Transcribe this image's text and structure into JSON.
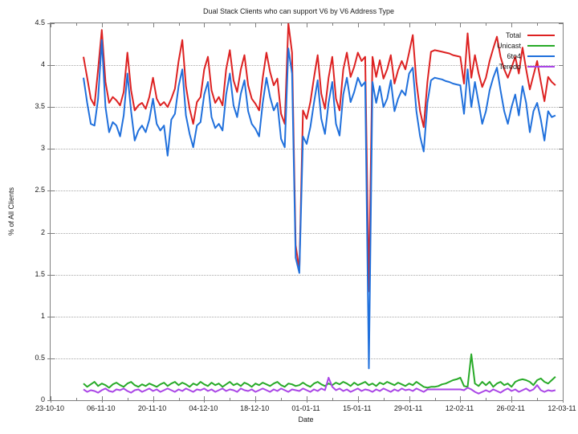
{
  "title": "Dual Stack Clients who can support V6 by V6 Address Type",
  "axes": {
    "x_label": "Date",
    "y_label": "% of All Clients",
    "x_tick_labels": [
      "23-10-10",
      "06-11-10",
      "20-11-10",
      "04-12-10",
      "18-12-10",
      "01-01-11",
      "15-01-11",
      "29-01-11",
      "12-02-11",
      "26-02-11",
      "12-03-11"
    ],
    "y_tick_labels": [
      "0",
      "0.5",
      "1",
      "1.5",
      "2",
      "2.5",
      "3",
      "3.5",
      "4",
      "4.5"
    ]
  },
  "colors": {
    "total": "#dd2222",
    "unicast": "#28aa28",
    "six_to_four": "#2070dc",
    "teredo": "#aa46e6",
    "border": "#7f7f7f",
    "grid": "#a8a8a8",
    "text": "#1a1a1a"
  },
  "chart_data": {
    "type": "line",
    "title": "Dual Stack Clients who can support V6 by V6 Address Type",
    "xlabel": "Date",
    "ylabel": "% of All Clients",
    "ylim": [
      0,
      4.5
    ],
    "x_axis_days_range": [
      0,
      140
    ],
    "x_tick_labels": [
      "23-10-10",
      "06-11-10",
      "20-11-10",
      "04-12-10",
      "18-12-10",
      "01-01-11",
      "15-01-11",
      "29-01-11",
      "12-02-11",
      "26-02-11",
      "12-03-11"
    ],
    "x_major_tick_days": 14,
    "x_minor_tick_days": 7,
    "y_grid_values": [
      0.5,
      1,
      1.5,
      2,
      2.5,
      3,
      3.5,
      4
    ],
    "y_tick_values": [
      0,
      0.5,
      1,
      1.5,
      2,
      2.5,
      3,
      3.5,
      4,
      4.5
    ],
    "grid": "horizontal dotted",
    "legend_position": "top-right-inside",
    "series_start_date": "01-11-10",
    "series_start_day_offset": 9,
    "series_day_interval": 1,
    "series": [
      {
        "name": "Total",
        "color": "#dd2222",
        "values": [
          4.1,
          3.85,
          3.6,
          3.52,
          3.95,
          4.42,
          3.8,
          3.55,
          3.62,
          3.58,
          3.52,
          3.68,
          4.15,
          3.7,
          3.46,
          3.52,
          3.55,
          3.48,
          3.62,
          3.85,
          3.6,
          3.52,
          3.56,
          3.5,
          3.6,
          3.72,
          4.05,
          4.3,
          3.75,
          3.48,
          3.3,
          3.56,
          3.62,
          3.95,
          4.1,
          3.7,
          3.55,
          3.62,
          3.52,
          3.95,
          4.18,
          3.82,
          3.68,
          3.95,
          4.12,
          3.76,
          3.6,
          3.54,
          3.46,
          3.85,
          4.15,
          3.92,
          3.76,
          3.84,
          3.42,
          3.3,
          4.5,
          4.15,
          1.85,
          1.55,
          3.46,
          3.36,
          3.56,
          3.85,
          4.12,
          3.66,
          3.48,
          3.85,
          4.1,
          3.6,
          3.46,
          3.95,
          4.15,
          3.86,
          3.98,
          4.15,
          4.05,
          4.1,
          1.3,
          4.1,
          3.86,
          4.06,
          3.84,
          3.95,
          4.12,
          3.78,
          3.94,
          4.05,
          3.95,
          4.15,
          4.36,
          3.8,
          3.45,
          3.26,
          3.8,
          4.16,
          4.18,
          4.17,
          4.16,
          4.15,
          4.14,
          4.12,
          4.11,
          4.1,
          3.78,
          4.38,
          3.85,
          4.12,
          3.9,
          3.74,
          3.85,
          4.05,
          4.2,
          4.34,
          4.1,
          3.95,
          3.85,
          3.97,
          4.1,
          3.9,
          4.21,
          3.95,
          3.71,
          3.88,
          4.05,
          3.8,
          3.57,
          3.86,
          3.8,
          3.76
        ]
      },
      {
        "name": "Unicast",
        "color": "#28aa28",
        "values": [
          0.2,
          0.16,
          0.19,
          0.22,
          0.17,
          0.2,
          0.18,
          0.15,
          0.19,
          0.21,
          0.18,
          0.16,
          0.2,
          0.22,
          0.18,
          0.16,
          0.19,
          0.17,
          0.2,
          0.18,
          0.16,
          0.19,
          0.21,
          0.17,
          0.2,
          0.22,
          0.18,
          0.21,
          0.19,
          0.16,
          0.2,
          0.18,
          0.22,
          0.19,
          0.17,
          0.21,
          0.18,
          0.2,
          0.16,
          0.19,
          0.22,
          0.18,
          0.2,
          0.17,
          0.21,
          0.19,
          0.16,
          0.2,
          0.18,
          0.21,
          0.19,
          0.17,
          0.2,
          0.22,
          0.18,
          0.16,
          0.2,
          0.19,
          0.17,
          0.18,
          0.21,
          0.18,
          0.16,
          0.2,
          0.22,
          0.19,
          0.17,
          0.2,
          0.18,
          0.21,
          0.19,
          0.22,
          0.2,
          0.17,
          0.21,
          0.18,
          0.2,
          0.22,
          0.18,
          0.2,
          0.17,
          0.21,
          0.19,
          0.22,
          0.2,
          0.18,
          0.21,
          0.19,
          0.17,
          0.2,
          0.18,
          0.22,
          0.19,
          0.16,
          0.15,
          0.16,
          0.16,
          0.17,
          0.19,
          0.2,
          0.22,
          0.24,
          0.25,
          0.27,
          0.17,
          0.16,
          0.55,
          0.2,
          0.17,
          0.22,
          0.18,
          0.22,
          0.16,
          0.2,
          0.22,
          0.18,
          0.2,
          0.16,
          0.22,
          0.24,
          0.25,
          0.24,
          0.22,
          0.18,
          0.24,
          0.26,
          0.22,
          0.2,
          0.24,
          0.28
        ]
      },
      {
        "name": "6to4",
        "color": "#2070dc",
        "values": [
          3.85,
          3.55,
          3.3,
          3.28,
          3.6,
          4.3,
          3.5,
          3.2,
          3.32,
          3.28,
          3.15,
          3.4,
          3.9,
          3.45,
          3.1,
          3.22,
          3.28,
          3.2,
          3.35,
          3.6,
          3.3,
          3.22,
          3.28,
          2.92,
          3.35,
          3.42,
          3.75,
          3.95,
          3.4,
          3.18,
          3.02,
          3.28,
          3.32,
          3.65,
          3.8,
          3.38,
          3.25,
          3.3,
          3.22,
          3.65,
          3.9,
          3.52,
          3.38,
          3.66,
          3.82,
          3.45,
          3.3,
          3.24,
          3.15,
          3.55,
          3.85,
          3.62,
          3.46,
          3.55,
          3.12,
          3.02,
          4.2,
          3.9,
          1.7,
          1.52,
          3.15,
          3.06,
          3.26,
          3.55,
          3.82,
          3.36,
          3.18,
          3.55,
          3.8,
          3.3,
          3.16,
          3.65,
          3.85,
          3.56,
          3.68,
          3.85,
          3.75,
          3.8,
          0.38,
          3.8,
          3.55,
          3.75,
          3.5,
          3.6,
          3.82,
          3.45,
          3.6,
          3.7,
          3.64,
          3.9,
          3.97,
          3.45,
          3.15,
          2.97,
          3.55,
          3.82,
          3.85,
          3.84,
          3.83,
          3.81,
          3.8,
          3.78,
          3.77,
          3.76,
          3.42,
          3.95,
          3.5,
          3.8,
          3.55,
          3.3,
          3.45,
          3.7,
          3.85,
          3.97,
          3.7,
          3.45,
          3.3,
          3.5,
          3.65,
          3.4,
          3.75,
          3.55,
          3.2,
          3.45,
          3.55,
          3.35,
          3.1,
          3.45,
          3.38,
          3.4
        ]
      },
      {
        "name": "Teredo",
        "color": "#aa46e6",
        "values": [
          0.13,
          0.1,
          0.12,
          0.11,
          0.09,
          0.12,
          0.14,
          0.11,
          0.1,
          0.13,
          0.12,
          0.14,
          0.11,
          0.09,
          0.12,
          0.13,
          0.1,
          0.12,
          0.14,
          0.11,
          0.13,
          0.1,
          0.12,
          0.14,
          0.12,
          0.1,
          0.13,
          0.11,
          0.14,
          0.12,
          0.1,
          0.13,
          0.12,
          0.14,
          0.11,
          0.13,
          0.1,
          0.12,
          0.14,
          0.11,
          0.13,
          0.12,
          0.1,
          0.14,
          0.12,
          0.11,
          0.13,
          0.1,
          0.12,
          0.14,
          0.12,
          0.1,
          0.13,
          0.11,
          0.14,
          0.12,
          0.1,
          0.13,
          0.12,
          0.11,
          0.14,
          0.12,
          0.1,
          0.13,
          0.11,
          0.14,
          0.12,
          0.27,
          0.16,
          0.12,
          0.14,
          0.11,
          0.13,
          0.1,
          0.12,
          0.14,
          0.11,
          0.13,
          0.12,
          0.1,
          0.13,
          0.11,
          0.14,
          0.12,
          0.1,
          0.13,
          0.11,
          0.14,
          0.12,
          0.13,
          0.11,
          0.14,
          0.12,
          0.1,
          0.13,
          0.13,
          0.13,
          0.13,
          0.13,
          0.13,
          0.13,
          0.13,
          0.13,
          0.13,
          0.12,
          0.15,
          0.13,
          0.1,
          0.08,
          0.1,
          0.12,
          0.1,
          0.13,
          0.11,
          0.09,
          0.12,
          0.14,
          0.11,
          0.13,
          0.1,
          0.12,
          0.14,
          0.11,
          0.13,
          0.18,
          0.12,
          0.1,
          0.12,
          0.11,
          0.12
        ]
      }
    ]
  },
  "legend": {
    "items": [
      {
        "label": "Total",
        "color": "#dd2222"
      },
      {
        "label": "Unicast",
        "color": "#28aa28"
      },
      {
        "label": "6to4",
        "color": "#2070dc"
      },
      {
        "label": "Teredo",
        "color": "#aa46e6"
      }
    ]
  }
}
